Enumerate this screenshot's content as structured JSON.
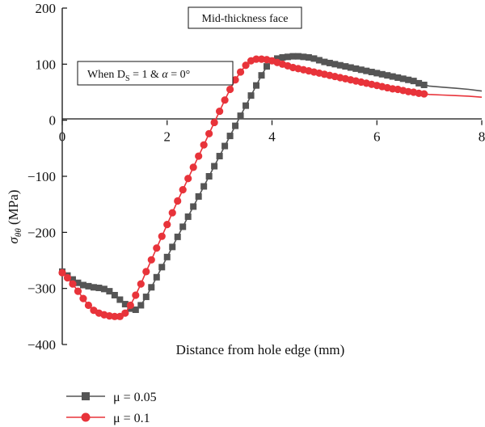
{
  "chart_data": {
    "type": "line",
    "xlabel": "Distance from hole edge (mm)",
    "ylabel": "σθθ (MPa)",
    "xlim": [
      0,
      8
    ],
    "ylim": [
      -400,
      200
    ],
    "xticks": [
      0,
      2,
      4,
      6,
      8
    ],
    "yticks": [
      -400,
      -300,
      -200,
      -100,
      0,
      100,
      200
    ],
    "grid": false,
    "legend_position": "bottom-left",
    "annotations": [
      "Mid-thickness face",
      "When D_S = 1 & α = 0°"
    ],
    "series": [
      {
        "name": "μ = 0.05",
        "color": "#555555",
        "marker": "square",
        "x": [
          0,
          0.1,
          0.2,
          0.3,
          0.4,
          0.5,
          0.6,
          0.7,
          0.8,
          0.9,
          1.0,
          1.1,
          1.2,
          1.3,
          1.4,
          1.5,
          1.6,
          1.7,
          1.8,
          1.9,
          2.0,
          2.1,
          2.2,
          2.3,
          2.4,
          2.5,
          2.6,
          2.7,
          2.8,
          2.9,
          3.0,
          3.1,
          3.2,
          3.3,
          3.4,
          3.5,
          3.6,
          3.7,
          3.8,
          3.9,
          4.0,
          4.1,
          4.2,
          4.3,
          4.4,
          4.5,
          4.6,
          4.7,
          4.8,
          4.9,
          5.0,
          5.1,
          5.2,
          5.3,
          5.4,
          5.5,
          5.6,
          5.7,
          5.8,
          5.9,
          6.0,
          6.1,
          6.2,
          6.3,
          6.4,
          6.5,
          6.6,
          6.7,
          6.8,
          6.9,
          7.0,
          7.25,
          7.5,
          7.75,
          8.0
        ],
        "y": [
          -270,
          -277,
          -284,
          -290,
          -294,
          -296,
          -298,
          -299,
          -301,
          -305,
          -312,
          -320,
          -328,
          -336,
          -338,
          -330,
          -315,
          -298,
          -280,
          -262,
          -244,
          -226,
          -208,
          -190,
          -172,
          -154,
          -136,
          -118,
          -100,
          -82,
          -64,
          -46,
          -28,
          -10,
          8,
          26,
          44,
          62,
          80,
          96,
          106,
          110,
          112,
          113,
          114,
          114,
          113,
          112,
          110,
          107,
          104,
          102,
          100,
          98,
          96,
          94,
          92,
          90,
          88,
          86,
          84,
          82,
          80,
          78,
          76,
          74,
          72,
          70,
          66,
          63,
          61,
          59,
          57,
          55,
          52
        ],
        "marker_count": 70
      },
      {
        "name": "μ = 0.1",
        "color": "#e8333a",
        "marker": "circle",
        "x": [
          0,
          0.1,
          0.2,
          0.3,
          0.4,
          0.5,
          0.6,
          0.7,
          0.8,
          0.9,
          1.0,
          1.1,
          1.2,
          1.3,
          1.4,
          1.5,
          1.6,
          1.7,
          1.8,
          1.9,
          2.0,
          2.1,
          2.2,
          2.3,
          2.4,
          2.5,
          2.6,
          2.7,
          2.8,
          2.9,
          3.0,
          3.1,
          3.2,
          3.3,
          3.4,
          3.5,
          3.6,
          3.7,
          3.8,
          3.9,
          4.0,
          4.1,
          4.2,
          4.3,
          4.4,
          4.5,
          4.6,
          4.7,
          4.8,
          4.9,
          5.0,
          5.1,
          5.2,
          5.3,
          5.4,
          5.5,
          5.6,
          5.7,
          5.8,
          5.9,
          6.0,
          6.1,
          6.2,
          6.3,
          6.4,
          6.5,
          6.6,
          6.7,
          6.8,
          6.9,
          7.0,
          7.25,
          7.5,
          7.75,
          8.0
        ],
        "y": [
          -272,
          -281,
          -292,
          -305,
          -318,
          -330,
          -339,
          -344,
          -347,
          -349,
          -350,
          -350,
          -344,
          -330,
          -312,
          -292,
          -270,
          -249,
          -228,
          -207,
          -186,
          -165,
          -144,
          -124,
          -104,
          -84,
          -64,
          -44,
          -24,
          -4,
          16,
          36,
          55,
          72,
          86,
          98,
          106,
          109,
          109,
          108,
          106,
          103,
          100,
          97,
          94,
          92,
          90,
          88,
          86,
          84,
          82,
          80,
          78,
          76,
          74,
          72,
          70,
          68,
          66,
          64,
          62,
          60,
          58,
          56,
          55,
          53,
          51,
          50,
          48,
          47,
          46,
          45,
          44,
          43,
          41
        ],
        "marker_count": 70
      }
    ]
  }
}
